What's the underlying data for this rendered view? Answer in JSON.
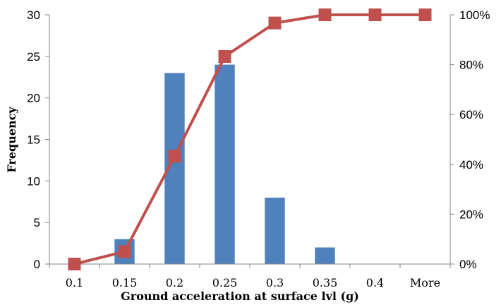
{
  "chart_data": {
    "type": "bar",
    "title": "",
    "xlabel": "Ground acceleration at surface lvl (g)",
    "ylabel": "Frequency",
    "categories": [
      "0.1",
      "0.15",
      "0.2",
      "0.25",
      "0.3",
      "0.35",
      "0.4",
      "More"
    ],
    "ylim": [
      0,
      30
    ],
    "yticks": [
      "0",
      "5",
      "10",
      "15",
      "20",
      "25",
      "30"
    ],
    "y2lim": [
      0,
      100
    ],
    "y2ticks": [
      "0%",
      "20%",
      "40%",
      "60%",
      "80%",
      "100%"
    ],
    "grid": false,
    "legend": "none",
    "series": [
      {
        "type": "bar",
        "axis": "left",
        "color": "#4f81bd",
        "values": [
          0,
          3,
          23,
          24,
          8,
          2,
          0,
          0
        ]
      },
      {
        "type": "line",
        "axis": "right",
        "color": "#c0504d",
        "marker": "square",
        "values": [
          0,
          5,
          43.3,
          83.3,
          96.7,
          100,
          100,
          100
        ]
      }
    ]
  }
}
